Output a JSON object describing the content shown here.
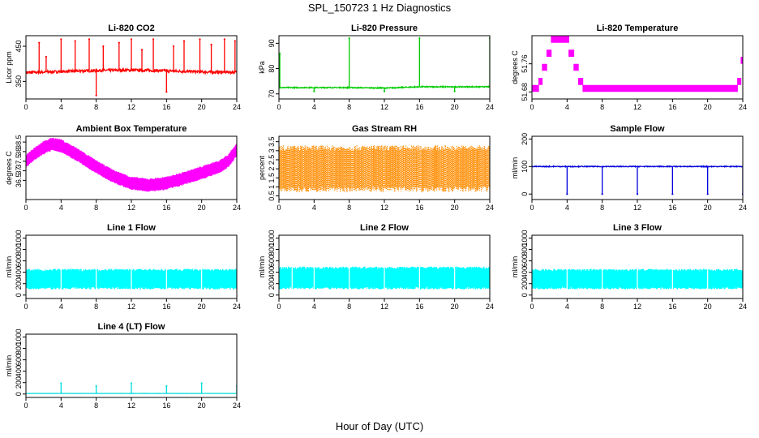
{
  "figure": {
    "title": "SPL_150723  1 Hz Diagnostics",
    "xlabel": "Hour of Day (UTC)"
  },
  "chart_data": [
    {
      "id": "co2",
      "type": "line",
      "title": "Li-820 CO2",
      "ylabel": "Licor ppm",
      "color": "#ff0000",
      "xlim": [
        0,
        24
      ],
      "xticks": [
        0,
        4,
        8,
        12,
        16,
        20,
        24
      ],
      "ylim": [
        300,
        480
      ],
      "yticks": [
        350,
        450
      ],
      "baseline": [
        [
          0,
          375
        ],
        [
          4,
          378
        ],
        [
          8,
          381
        ],
        [
          12,
          382
        ],
        [
          16,
          380
        ],
        [
          20,
          377
        ],
        [
          24,
          376
        ]
      ],
      "spikes": [
        [
          1.5,
          460
        ],
        [
          2.3,
          420
        ],
        [
          4.0,
          470
        ],
        [
          5.6,
          465
        ],
        [
          7.2,
          470
        ],
        [
          8.0,
          310
        ],
        [
          8.8,
          450
        ],
        [
          10.6,
          460
        ],
        [
          12.0,
          470
        ],
        [
          13.2,
          440
        ],
        [
          14.5,
          470
        ],
        [
          16.0,
          320
        ],
        [
          16.8,
          450
        ],
        [
          18.0,
          465
        ],
        [
          19.8,
          470
        ],
        [
          21.1,
          455
        ],
        [
          22.6,
          470
        ],
        [
          23.8,
          465
        ]
      ],
      "noise": 4
    },
    {
      "id": "pressure",
      "type": "line",
      "title": "Li-820 Pressure",
      "ylabel": "kPa",
      "color": "#00cc00",
      "xlim": [
        0,
        24
      ],
      "xticks": [
        0,
        4,
        8,
        12,
        16,
        20,
        24
      ],
      "ylim": [
        68,
        93
      ],
      "yticks": [
        70,
        80,
        90
      ],
      "baseline": [
        [
          0,
          72.5
        ],
        [
          8,
          72.5
        ],
        [
          12,
          72.3
        ],
        [
          16,
          72.8
        ],
        [
          24,
          72.8
        ]
      ],
      "spikes": [
        [
          0.1,
          86
        ],
        [
          4.0,
          71
        ],
        [
          8.0,
          92
        ],
        [
          12.0,
          71
        ],
        [
          16.0,
          92
        ],
        [
          20.0,
          71
        ],
        [
          24.0,
          92
        ]
      ],
      "noise": 0.2
    },
    {
      "id": "licor_temp",
      "type": "step",
      "title": "Li-820 Temperature",
      "ylabel": "degrees C",
      "color": "#ff00ff",
      "xlim": [
        0,
        24
      ],
      "xticks": [
        0,
        4,
        8,
        12,
        16,
        20,
        24
      ],
      "ylim": [
        51.66,
        51.84
      ],
      "yticks": [
        51.68,
        51.76
      ],
      "levels": [
        [
          0,
          51.68
        ],
        [
          0.8,
          51.7
        ],
        [
          1.2,
          51.74
        ],
        [
          1.7,
          51.78
        ],
        [
          2.2,
          51.82
        ],
        [
          4.2,
          51.78
        ],
        [
          4.8,
          51.74
        ],
        [
          5.3,
          51.7
        ],
        [
          5.8,
          51.68
        ],
        [
          23.4,
          51.7
        ],
        [
          23.8,
          51.76
        ]
      ],
      "band": 0.02
    },
    {
      "id": "box_temp",
      "type": "band",
      "title": "Ambient Box Temperature",
      "ylabel": "degrees C",
      "color": "#ff00ff",
      "xlim": [
        0,
        24
      ],
      "xticks": [
        0,
        4,
        8,
        12,
        16,
        20,
        24
      ],
      "ylim": [
        35.5,
        38.8
      ],
      "yticks": [
        36.5,
        37.0,
        37.5,
        38.0,
        38.5
      ],
      "center": [
        [
          0,
          37.5
        ],
        [
          1,
          37.9
        ],
        [
          2,
          38.2
        ],
        [
          3,
          38.4
        ],
        [
          4,
          38.3
        ],
        [
          6,
          37.8
        ],
        [
          8,
          37.2
        ],
        [
          10,
          36.7
        ],
        [
          12,
          36.35
        ],
        [
          14,
          36.25
        ],
        [
          16,
          36.35
        ],
        [
          18,
          36.6
        ],
        [
          20,
          36.9
        ],
        [
          22,
          37.2
        ],
        [
          23,
          37.5
        ],
        [
          24,
          38.1
        ]
      ],
      "halfwidth": 0.35
    },
    {
      "id": "rh",
      "type": "band",
      "title": "Gas Stream RH",
      "ylabel": "percent",
      "color": "#ff8c00",
      "xlim": [
        0,
        24
      ],
      "xticks": [
        0,
        4,
        8,
        12,
        16,
        20,
        24
      ],
      "ylim": [
        0.3,
        3.8
      ],
      "yticks": [
        0.5,
        1.0,
        1.5,
        2.0,
        2.5,
        3.0,
        3.5
      ],
      "center": [
        [
          0,
          2.0
        ],
        [
          12,
          2.0
        ],
        [
          24,
          2.0
        ]
      ],
      "halfwidth": 1.3,
      "dotted": true
    },
    {
      "id": "sample_flow",
      "type": "line",
      "title": "Sample Flow",
      "ylabel": "ml/min",
      "color": "#0000dd",
      "xlim": [
        0,
        24
      ],
      "xticks": [
        0,
        4,
        8,
        12,
        16,
        20,
        24
      ],
      "ylim": [
        -20,
        210
      ],
      "yticks": [
        0,
        100,
        200
      ],
      "baseline": [
        [
          0,
          100
        ],
        [
          24,
          100
        ]
      ],
      "spikes": [
        [
          4.0,
          0
        ],
        [
          8.0,
          0
        ],
        [
          12.0,
          0
        ],
        [
          16.0,
          0
        ],
        [
          20.0,
          0
        ],
        [
          24.0,
          0
        ]
      ],
      "noise": 1.5
    },
    {
      "id": "line1",
      "type": "band",
      "title": "Line 1 Flow",
      "ylabel": "ml/min",
      "color": "#00ffff",
      "xlim": [
        0,
        24
      ],
      "xticks": [
        0,
        4,
        8,
        12,
        16,
        20,
        24
      ],
      "ylim": [
        -60,
        1050
      ],
      "yticks": [
        0,
        200,
        400,
        600,
        800,
        1000
      ],
      "center": [
        [
          0,
          280
        ],
        [
          24,
          280
        ]
      ],
      "halfwidth": 180,
      "gaps": [
        4,
        8,
        12,
        16,
        20
      ]
    },
    {
      "id": "line2",
      "type": "band",
      "title": "Line 2 Flow",
      "ylabel": "ml/min",
      "color": "#00ffff",
      "xlim": [
        0,
        24
      ],
      "xticks": [
        0,
        4,
        8,
        12,
        16,
        20,
        24
      ],
      "ylim": [
        -60,
        1050
      ],
      "yticks": [
        0,
        200,
        400,
        600,
        800,
        1000
      ],
      "center": [
        [
          0,
          300
        ],
        [
          24,
          300
        ]
      ],
      "halfwidth": 200,
      "gaps": [
        1.5,
        4,
        8,
        12,
        16,
        20
      ]
    },
    {
      "id": "line3",
      "type": "band",
      "title": "Line 3 Flow",
      "ylabel": "ml/min",
      "color": "#00ffff",
      "xlim": [
        0,
        24
      ],
      "xticks": [
        0,
        4,
        8,
        12,
        16,
        20,
        24
      ],
      "ylim": [
        -60,
        1050
      ],
      "yticks": [
        0,
        200,
        400,
        600,
        800,
        1000
      ],
      "center": [
        [
          0,
          280
        ],
        [
          24,
          280
        ]
      ],
      "halfwidth": 180,
      "gaps": [
        4,
        8,
        12,
        16,
        20
      ]
    },
    {
      "id": "line4",
      "type": "line",
      "title": "Line 4 (LT) Flow",
      "ylabel": "ml/min",
      "color": "#00dddd",
      "xlim": [
        0,
        24
      ],
      "xticks": [
        0,
        4,
        8,
        12,
        16,
        20,
        24
      ],
      "ylim": [
        -60,
        1050
      ],
      "yticks": [
        0,
        200,
        400,
        600,
        800,
        1000
      ],
      "baseline": [
        [
          0,
          10
        ],
        [
          24,
          10
        ]
      ],
      "spikes": [
        [
          4.0,
          190
        ],
        [
          8.0,
          140
        ],
        [
          12.0,
          190
        ],
        [
          16.0,
          140
        ],
        [
          20.0,
          190
        ],
        [
          24.0,
          140
        ]
      ],
      "noise": 2
    }
  ]
}
